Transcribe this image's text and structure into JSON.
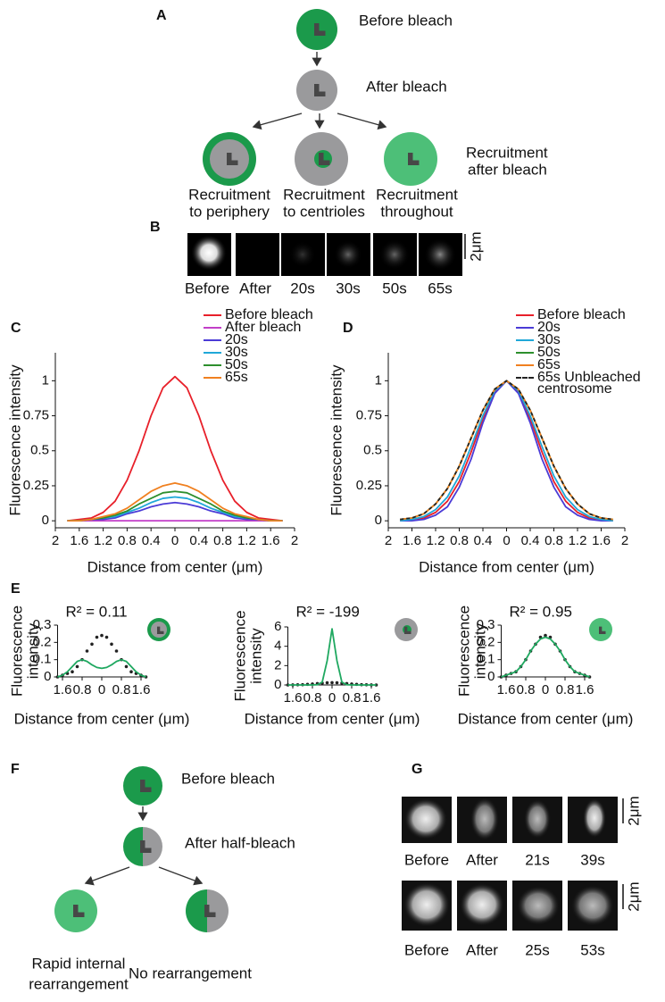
{
  "panels": [
    "A",
    "B",
    "C",
    "D",
    "E",
    "F",
    "G"
  ],
  "diagram_a": {
    "before": "Before bleach",
    "after": "After bleach",
    "outcomes": [
      [
        "Recruitment",
        "to periphery"
      ],
      [
        "Recruitment",
        "to centrioles"
      ],
      [
        "Recruitment",
        "throughout"
      ]
    ],
    "note": [
      "Recruitment",
      "after bleach"
    ]
  },
  "images_b": {
    "labels": [
      "Before",
      "After",
      "20s",
      "30s",
      "50s",
      "65s"
    ],
    "scale_bar": "2μm"
  },
  "chart_data": [
    {
      "type": "line",
      "xlabel": "Distance from center (μm)",
      "ylabel": "Fluorescence intensity",
      "legend": "upper right",
      "x": [
        -1.8,
        -1.6,
        -1.4,
        -1.2,
        -1,
        -0.8,
        -0.6,
        -0.4,
        -0.2,
        0,
        0.2,
        0.4,
        0.6,
        0.8,
        1,
        1.2,
        1.4,
        1.6,
        1.8
      ],
      "xlim": [
        -2,
        2
      ],
      "xticks": [
        {
          "value": -2,
          "label": "2"
        },
        {
          "value": -1.6,
          "label": "1.6"
        },
        {
          "value": -1.2,
          "label": "1.2"
        },
        {
          "value": -0.8,
          "label": "0.8"
        },
        {
          "value": -0.4,
          "label": "0.4"
        },
        0,
        0.4,
        0.8,
        1.2,
        1.6,
        2
      ],
      "ylim": [
        -0.05,
        1.2
      ],
      "yticks": [
        0,
        0.25,
        0.5,
        0.75,
        1
      ],
      "series": [
        {
          "name": "Before bleach",
          "color": "#e8202a",
          "values": [
            0,
            0.01,
            0.02,
            0.06,
            0.14,
            0.29,
            0.5,
            0.75,
            0.95,
            1.03,
            0.95,
            0.75,
            0.5,
            0.29,
            0.14,
            0.06,
            0.02,
            0.01,
            0
          ]
        },
        {
          "name": "After bleach",
          "color": "#c23fc8",
          "values": [
            0,
            0,
            0,
            0,
            0,
            0,
            0,
            0,
            0,
            0,
            0,
            0,
            0,
            0,
            0,
            0,
            0,
            0,
            0
          ]
        },
        {
          "name": "20s",
          "color": "#4b3bd6",
          "values": [
            0,
            0,
            0.01,
            0.01,
            0.02,
            0.05,
            0.07,
            0.1,
            0.12,
            0.13,
            0.12,
            0.1,
            0.07,
            0.05,
            0.02,
            0.01,
            0.01,
            0,
            0
          ]
        },
        {
          "name": "30s",
          "color": "#20a8d8",
          "values": [
            0,
            0,
            0.01,
            0.02,
            0.03,
            0.06,
            0.09,
            0.13,
            0.16,
            0.17,
            0.16,
            0.13,
            0.09,
            0.06,
            0.03,
            0.02,
            0.01,
            0,
            0
          ]
        },
        {
          "name": "50s",
          "color": "#2d8f2d",
          "values": [
            0,
            0,
            0.01,
            0.02,
            0.04,
            0.07,
            0.12,
            0.16,
            0.2,
            0.21,
            0.2,
            0.16,
            0.12,
            0.07,
            0.04,
            0.02,
            0.01,
            0,
            0
          ]
        },
        {
          "name": "65s",
          "color": "#f08020",
          "values": [
            0,
            0,
            0.01,
            0.03,
            0.05,
            0.09,
            0.15,
            0.21,
            0.25,
            0.27,
            0.25,
            0.21,
            0.15,
            0.09,
            0.05,
            0.03,
            0.01,
            0,
            0
          ]
        }
      ]
    },
    {
      "type": "line",
      "xlabel": "Distance from center (μm)",
      "ylabel": "Fluorescence intensity",
      "legend": "upper right",
      "x": [
        -1.8,
        -1.6,
        -1.4,
        -1.2,
        -1,
        -0.8,
        -0.6,
        -0.4,
        -0.2,
        0,
        0.2,
        0.4,
        0.6,
        0.8,
        1,
        1.2,
        1.4,
        1.6,
        1.8
      ],
      "xlim": [
        -2,
        2
      ],
      "xticks": [
        {
          "value": -2,
          "label": "2"
        },
        {
          "value": -1.6,
          "label": "1.6"
        },
        {
          "value": -1.2,
          "label": "1.2"
        },
        {
          "value": -0.8,
          "label": "0.8"
        },
        {
          "value": -0.4,
          "label": "0.4"
        },
        0,
        0.4,
        0.8,
        1.2,
        1.6,
        2
      ],
      "ylim": [
        -0.05,
        1.2
      ],
      "yticks": [
        0,
        0.25,
        0.5,
        0.75,
        1
      ],
      "series": [
        {
          "name": "Before bleach",
          "color": "#e8202a",
          "values": [
            0,
            0.01,
            0.02,
            0.06,
            0.14,
            0.28,
            0.49,
            0.73,
            0.92,
            1,
            0.92,
            0.73,
            0.49,
            0.28,
            0.14,
            0.06,
            0.02,
            0.01,
            0
          ]
        },
        {
          "name": "20s",
          "color": "#4b3bd6",
          "values": [
            0,
            0,
            0.01,
            0.04,
            0.1,
            0.24,
            0.44,
            0.7,
            0.91,
            1,
            0.91,
            0.7,
            0.44,
            0.24,
            0.1,
            0.04,
            0.01,
            0,
            0
          ]
        },
        {
          "name": "30s",
          "color": "#20a8d8",
          "values": [
            0,
            0.01,
            0.03,
            0.08,
            0.17,
            0.32,
            0.53,
            0.75,
            0.93,
            1,
            0.93,
            0.75,
            0.53,
            0.32,
            0.17,
            0.08,
            0.03,
            0.01,
            0
          ]
        },
        {
          "name": "50s",
          "color": "#2d8f2d",
          "values": [
            0.01,
            0.02,
            0.05,
            0.12,
            0.23,
            0.39,
            0.59,
            0.79,
            0.94,
            1,
            0.94,
            0.79,
            0.59,
            0.39,
            0.23,
            0.12,
            0.05,
            0.02,
            0.01
          ]
        },
        {
          "name": "65s",
          "color": "#f08020",
          "values": [
            0.01,
            0.02,
            0.05,
            0.12,
            0.23,
            0.39,
            0.59,
            0.79,
            0.94,
            1,
            0.94,
            0.79,
            0.59,
            0.39,
            0.23,
            0.12,
            0.05,
            0.02,
            0.01
          ]
        },
        {
          "name": "65s Unbleached centrosome",
          "color": "#222222",
          "dashed": true,
          "values": [
            0.01,
            0.02,
            0.05,
            0.12,
            0.23,
            0.39,
            0.59,
            0.79,
            0.94,
            1,
            0.94,
            0.79,
            0.59,
            0.39,
            0.23,
            0.12,
            0.05,
            0.02,
            0.01
          ]
        }
      ]
    },
    {
      "type": "line",
      "title": "R² = 0.11",
      "xlabel": "Distance from center (μm)",
      "ylabel": [
        "Fluorescence",
        "intensity"
      ],
      "x": [
        -1.8,
        -1.6,
        -1.4,
        -1.2,
        -1,
        -0.8,
        -0.6,
        -0.4,
        -0.2,
        0,
        0.2,
        0.4,
        0.6,
        0.8,
        1,
        1.2,
        1.4,
        1.6,
        1.8
      ],
      "xlim": [
        -1.8,
        1.8
      ],
      "xticks": [
        {
          "value": -1.6,
          "label": "1.6"
        },
        {
          "value": -0.8,
          "label": "0.8"
        },
        0,
        0.8,
        1.6
      ],
      "ylim": [
        0,
        0.3
      ],
      "yticks": [
        0,
        0.1,
        0.2,
        0.3
      ],
      "series": [
        {
          "color": "#222222",
          "marker": "dot",
          "values": [
            0,
            0.01,
            0.02,
            0.03,
            0.06,
            0.1,
            0.15,
            0.19,
            0.23,
            0.24,
            0.23,
            0.19,
            0.15,
            0.1,
            0.06,
            0.03,
            0.02,
            0.01,
            0
          ]
        },
        {
          "color": "#1fa860",
          "values": [
            0,
            0.01,
            0.03,
            0.06,
            0.09,
            0.1,
            0.09,
            0.07,
            0.055,
            0.05,
            0.055,
            0.07,
            0.09,
            0.1,
            0.09,
            0.06,
            0.03,
            0.01,
            0
          ]
        }
      ]
    },
    {
      "type": "line",
      "title": "R² = -199",
      "xlabel": "Distance from center (μm)",
      "ylabel": [
        "Fluorescence",
        "intensity"
      ],
      "x": [
        -1.8,
        -1.6,
        -1.4,
        -1.2,
        -1,
        -0.8,
        -0.6,
        -0.4,
        -0.2,
        0,
        0.2,
        0.4,
        0.6,
        0.8,
        1,
        1.2,
        1.4,
        1.6,
        1.8
      ],
      "xlim": [
        -1.8,
        1.8
      ],
      "xticks": [
        {
          "value": -1.6,
          "label": "1.6"
        },
        {
          "value": -0.8,
          "label": "0.8"
        },
        0,
        0.8,
        1.6
      ],
      "ylim": [
        0,
        6
      ],
      "yticks": [
        0,
        2,
        4,
        6
      ],
      "series": [
        {
          "color": "#222222",
          "marker": "dot",
          "values": [
            0,
            0.01,
            0.02,
            0.03,
            0.06,
            0.1,
            0.15,
            0.19,
            0.23,
            0.24,
            0.23,
            0.19,
            0.15,
            0.1,
            0.06,
            0.03,
            0.02,
            0.01,
            0
          ]
        },
        {
          "color": "#1fa860",
          "values": [
            0,
            0,
            0,
            0,
            0,
            0,
            0.02,
            0.3,
            2.5,
            5.8,
            2.5,
            0.3,
            0.02,
            0,
            0,
            0,
            0,
            0,
            0
          ]
        }
      ]
    },
    {
      "type": "line",
      "title": "R² = 0.95",
      "xlabel": "Distance from center (μm)",
      "ylabel": [
        "Fluorescence",
        "intensity"
      ],
      "x": [
        -1.8,
        -1.6,
        -1.4,
        -1.2,
        -1,
        -0.8,
        -0.6,
        -0.4,
        -0.2,
        0,
        0.2,
        0.4,
        0.6,
        0.8,
        1,
        1.2,
        1.4,
        1.6,
        1.8
      ],
      "xlim": [
        -1.8,
        1.8
      ],
      "xticks": [
        {
          "value": -1.6,
          "label": "1.6"
        },
        {
          "value": -0.8,
          "label": "0.8"
        },
        0,
        0.8,
        1.6
      ],
      "ylim": [
        0,
        0.3
      ],
      "yticks": [
        0,
        0.1,
        0.2,
        0.3
      ],
      "series": [
        {
          "color": "#222222",
          "marker": "dot",
          "values": [
            0,
            0.01,
            0.02,
            0.03,
            0.06,
            0.1,
            0.15,
            0.19,
            0.23,
            0.24,
            0.23,
            0.19,
            0.15,
            0.1,
            0.06,
            0.03,
            0.02,
            0.01,
            0
          ]
        },
        {
          "color": "#1fa860",
          "values": [
            0,
            0.01,
            0.02,
            0.03,
            0.06,
            0.1,
            0.15,
            0.19,
            0.22,
            0.23,
            0.22,
            0.19,
            0.15,
            0.1,
            0.06,
            0.03,
            0.02,
            0.01,
            0
          ]
        }
      ]
    }
  ],
  "diagram_f": {
    "before": "Before bleach",
    "after": "After half-bleach",
    "outcomes": [
      [
        "Rapid internal",
        "rearrangement"
      ],
      [
        "No rearrangement"
      ]
    ]
  },
  "images_g": {
    "rows": [
      {
        "labels": [
          "Before",
          "After",
          "21s",
          "39s"
        ],
        "scale_bar": "2μm"
      },
      {
        "labels": [
          "Before",
          "After",
          "25s",
          "53s"
        ],
        "scale_bar": "2μm"
      }
    ]
  }
}
